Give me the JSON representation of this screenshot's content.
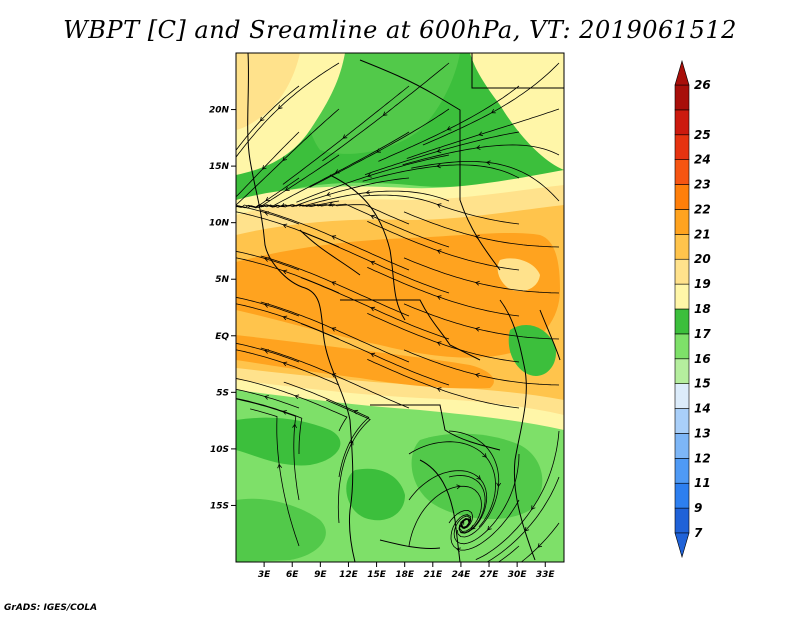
{
  "title": "WBPT [C] and Sreamline at 600hPa, VT: 2019061512",
  "credit": "GrADS: IGES/COLA",
  "map": {
    "lat_labels": [
      {
        "lat": 20,
        "label": "20N"
      },
      {
        "lat": 15,
        "label": "15N"
      },
      {
        "lat": 10,
        "label": "10N"
      },
      {
        "lat": 5,
        "label": "5N"
      },
      {
        "lat": 0,
        "label": "EQ"
      },
      {
        "lat": -5,
        "label": "5S"
      },
      {
        "lat": -10,
        "label": "10S"
      },
      {
        "lat": -15,
        "label": "15S"
      }
    ],
    "lon_labels": [
      {
        "lon": 3,
        "label": "3E"
      },
      {
        "lon": 6,
        "label": "6E"
      },
      {
        "lon": 9,
        "label": "9E"
      },
      {
        "lon": 12,
        "label": "12E"
      },
      {
        "lon": 15,
        "label": "15E"
      },
      {
        "lon": 18,
        "label": "18E"
      },
      {
        "lon": 21,
        "label": "21E"
      },
      {
        "lon": 24,
        "label": "24E"
      },
      {
        "lon": 27,
        "label": "27E"
      },
      {
        "lon": 30,
        "label": "30E"
      },
      {
        "lon": 33,
        "label": "33E"
      }
    ],
    "lon_range": [
      0,
      35
    ],
    "lat_range": [
      -20,
      25
    ]
  },
  "colorbar": {
    "levels": [
      "7",
      "9",
      "11",
      "12",
      "13",
      "14",
      "15",
      "16",
      "17",
      "18",
      "19",
      "20",
      "21",
      "22",
      "23",
      "24",
      "25",
      "26"
    ],
    "colors": [
      "#1f62d8",
      "#2d7ff0",
      "#4f9af5",
      "#7db6f7",
      "#a9cff9",
      "#dcecfb",
      "#b5ee9e",
      "#7ee069",
      "#3cbf3c",
      "#fff6a8",
      "#ffe28c",
      "#ffc44c",
      "#ffa31f",
      "#ff7f0a",
      "#f65512",
      "#e63310",
      "#cc1a0e",
      "#a80f0a"
    ]
  }
}
